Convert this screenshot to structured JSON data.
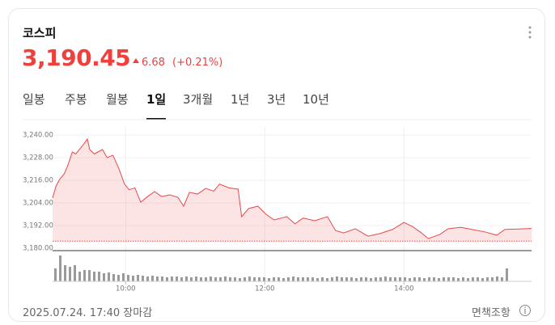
{
  "header": {
    "title": "코스피",
    "price": "3,190.45",
    "change": "6.68",
    "change_pct": "(+0.21%)"
  },
  "tabs": [
    "일봉",
    "주봉",
    "월봉",
    "1일",
    "3개월",
    "1년",
    "3년",
    "10년"
  ],
  "active_tab": 3,
  "chart_data": {
    "type": "line",
    "x": [
      537,
      540,
      543,
      547,
      550,
      554,
      557,
      561,
      564,
      567,
      569,
      573,
      576,
      580,
      584,
      589,
      594,
      599,
      603,
      608,
      613,
      619,
      625,
      631,
      638,
      645,
      650,
      655,
      662,
      669,
      676,
      681,
      689,
      697,
      700,
      706,
      714,
      721,
      728,
      739,
      746,
      753,
      763,
      774,
      781,
      788,
      798,
      809,
      819,
      830,
      840,
      847,
      854,
      861,
      871,
      878,
      889,
      899,
      910,
      920,
      927,
      950
    ],
    "series": [
      {
        "color": "#e8484a",
        "values": [
          3206.6,
          3213,
          3216.4,
          3219.4,
          3223.7,
          3231,
          3230,
          3233,
          3235.3,
          3237.9,
          3232.3,
          3230,
          3231,
          3232.3,
          3228,
          3229.3,
          3222.4,
          3214,
          3211,
          3212,
          3204.4,
          3207.4,
          3210,
          3207.4,
          3208.3,
          3207,
          3202.3,
          3209.6,
          3208.7,
          3211.7,
          3210.3,
          3214,
          3212,
          3211.3,
          3196.7,
          3201,
          3202.3,
          3198,
          3195,
          3196.7,
          3192.9,
          3196,
          3194.6,
          3196.7,
          3189.4,
          3188.1,
          3190.3,
          3186.4,
          3187.7,
          3189.9,
          3193.7,
          3191.6,
          3188.6,
          3185.1,
          3187.3,
          3190.3,
          3191.1,
          3189.9,
          3188.6,
          3186.9,
          3189.9,
          3190.45
        ]
      }
    ],
    "baseline": 3183.77,
    "xlim": [
      537,
      950
    ],
    "xticks": [
      {
        "value": 600,
        "label": "10:00"
      },
      {
        "value": 720,
        "label": "12:00"
      },
      {
        "value": 840,
        "label": "14:00"
      }
    ],
    "ylim": [
      3180,
      3240
    ],
    "yticks": [
      {
        "value": 3180,
        "label": "3,180.00"
      },
      {
        "value": 3192,
        "label": "3,192.00"
      },
      {
        "value": 3204,
        "label": "3,204.00"
      },
      {
        "value": 3216,
        "label": "3,216.00"
      },
      {
        "value": 3228,
        "label": "3,228.00"
      },
      {
        "value": 3240,
        "label": "3,240.00"
      }
    ],
    "grid": true,
    "volume": {
      "color": "#9a9a9a",
      "ylim": [
        0,
        36
      ],
      "values": [
        16,
        32,
        20,
        18,
        20,
        12,
        14,
        14,
        12,
        12,
        10,
        11,
        9,
        8,
        10,
        8,
        7,
        8,
        7,
        6,
        7,
        6,
        6,
        5,
        6,
        6,
        5,
        6,
        5,
        6,
        5,
        5,
        6,
        5,
        5,
        6,
        5,
        5,
        4,
        5,
        6,
        5,
        5,
        5,
        4,
        5,
        5,
        4,
        5,
        6,
        5,
        5,
        5,
        5,
        4,
        5,
        4,
        5,
        6,
        5,
        5,
        5,
        4,
        5,
        5,
        4,
        5,
        5,
        6,
        5,
        5,
        5,
        5,
        4,
        5,
        5,
        4,
        5,
        5,
        4,
        5,
        5,
        5,
        4,
        5,
        4,
        5,
        5,
        4,
        5,
        5,
        6,
        5,
        16
      ]
    }
  },
  "footer": {
    "date": "2025.07.24. 17:40 장마감",
    "disclaimer": "면책조항"
  }
}
